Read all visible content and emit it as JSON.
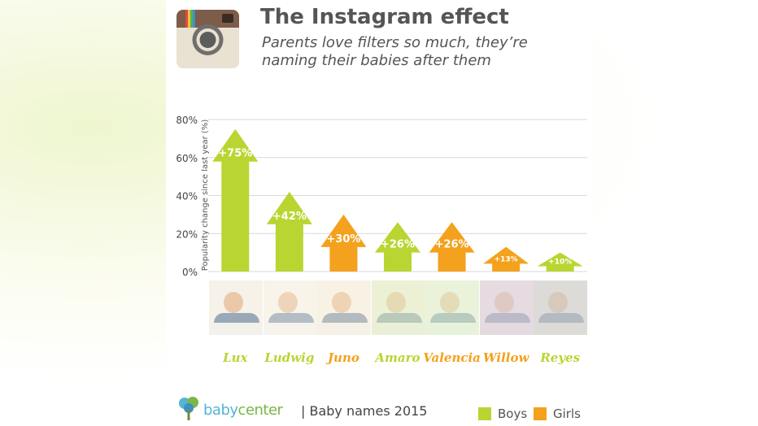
{
  "header": {
    "title": "The Instagram effect",
    "subtitle": "Parents love filters so much, they’re naming their babies after them"
  },
  "colors": {
    "boys": "#b9d532",
    "girls": "#f4a11d",
    "grid": "#d9d9d9",
    "text": "#555555"
  },
  "icons": [
    "instagram-camera-icon",
    "babycenter-tree-icon"
  ],
  "chart_data": {
    "type": "bar",
    "ylabel": "Popularity change since last year (%)",
    "ylim": [
      0,
      80
    ],
    "yticks": [
      "0%",
      "20%",
      "40%",
      "60%",
      "80%"
    ],
    "grid": true,
    "legend_position": "bottom-right",
    "categories": [
      "Lux",
      "Ludwig",
      "Juno",
      "Amaro",
      "Valencia",
      "Willow",
      "Reyes"
    ],
    "values": [
      75,
      42,
      30,
      26,
      26,
      13,
      10
    ],
    "labels": [
      "+75%",
      "+42%",
      "+30%",
      "+26%",
      "+26%",
      "+13%",
      "+10%"
    ],
    "gender": [
      "Boys",
      "Boys",
      "Girls",
      "Boys",
      "Girls",
      "Girls",
      "Boys"
    ],
    "legend": [
      {
        "name": "Boys",
        "color": "#b9d532"
      },
      {
        "name": "Girls",
        "color": "#f4a11d"
      }
    ]
  },
  "footer": {
    "brand_left": "baby",
    "brand_right": "center",
    "source": "| Baby names 2015"
  }
}
